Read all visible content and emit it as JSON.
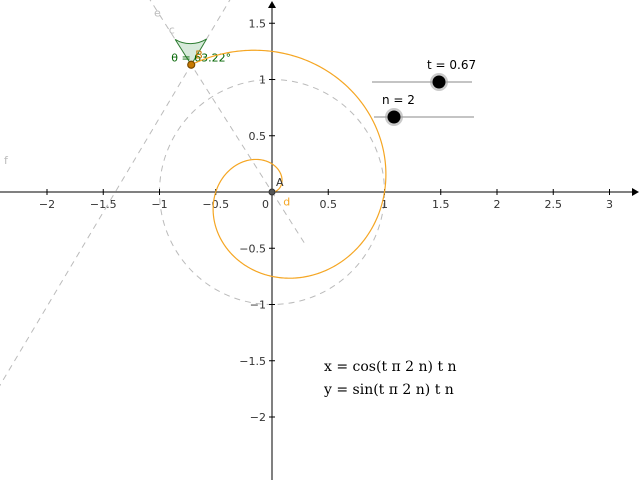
{
  "colors": {
    "axis": "#000000",
    "spiral": "#f5a623",
    "dashed": "#bbbbbb",
    "angle_fill": "#d7eadb",
    "angle_stroke": "#2e7d32",
    "angle_text": "#006400",
    "point_a": "#555555",
    "point_b": "#c87a00",
    "slider_line": "#888888",
    "slider_knob": "#000000"
  },
  "axes": {
    "x_ticks": [
      {
        "value": -2,
        "label": "−2"
      },
      {
        "value": -1.5,
        "label": "−1.5"
      },
      {
        "value": -1,
        "label": "−1"
      },
      {
        "value": -0.5,
        "label": "−0.5"
      },
      {
        "value": 0.5,
        "label": "0.5"
      },
      {
        "value": 1,
        "label": "1"
      },
      {
        "value": 1.5,
        "label": "1.5"
      },
      {
        "value": 2,
        "label": "2"
      },
      {
        "value": 2.5,
        "label": "2.5"
      },
      {
        "value": 3,
        "label": "3"
      }
    ],
    "y_ticks": [
      {
        "value": 1.5,
        "label": "1.5"
      },
      {
        "value": 1,
        "label": "1"
      },
      {
        "value": 0.5,
        "label": "0.5"
      },
      {
        "value": -0.5,
        "label": "−0.5"
      },
      {
        "value": -1,
        "label": "−1"
      },
      {
        "value": -1.5,
        "label": "−1.5"
      },
      {
        "value": -2,
        "label": "−2"
      }
    ],
    "origin_label": "0"
  },
  "sliders": {
    "t": {
      "label": "t = 0.67",
      "value": 0.67,
      "min": 0,
      "max": 1
    },
    "n": {
      "label": "n = 2",
      "value": 2,
      "min": 1,
      "max": 6
    }
  },
  "points": {
    "A": {
      "label": "A",
      "x": 0,
      "y": 0
    },
    "B": {
      "label": "B"
    }
  },
  "lines": {
    "c": "c",
    "e": "e",
    "f": "f"
  },
  "curve": {
    "label": "d"
  },
  "angle": {
    "label": "θ = 63.22°",
    "degrees": 63.22
  },
  "circles": [
    {
      "radius": 1
    }
  ],
  "formulas": {
    "x": "x = cos(t π 2 n) t n",
    "y": "y = sin(t π 2 n) t n"
  }
}
